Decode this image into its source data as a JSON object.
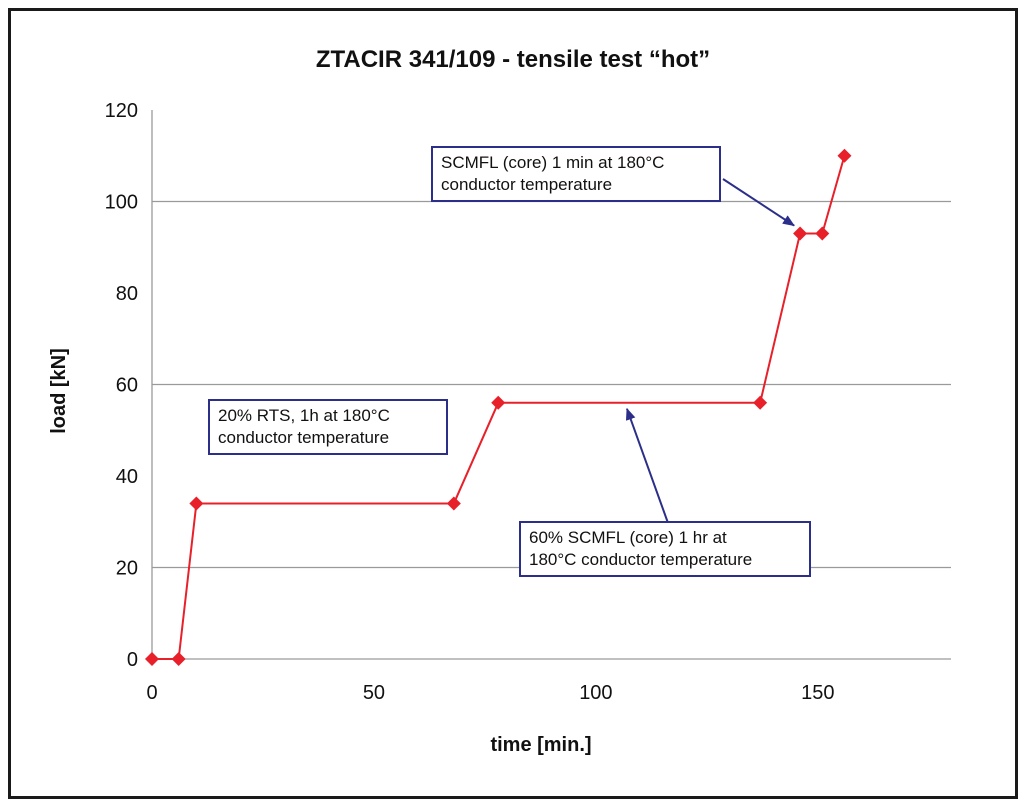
{
  "chart_data": {
    "type": "line",
    "title": "ZTACIR 341/109 - tensile test “hot”",
    "xlabel": "time [min.]",
    "ylabel": "load [kN]",
    "xlim": [
      0,
      180
    ],
    "ylim": [
      0,
      120
    ],
    "x_ticks": [
      0,
      50,
      100,
      150
    ],
    "y_ticks": [
      0,
      20,
      40,
      60,
      80,
      100,
      120
    ],
    "grid": "horizontal",
    "legend": "none",
    "series": [
      {
        "x": [
          0,
          6,
          10,
          68,
          78,
          137,
          146,
          151,
          156
        ],
        "y": [
          0,
          0,
          34,
          34,
          56,
          56,
          93,
          93,
          110
        ]
      }
    ],
    "annotations": [
      {
        "id": "ann-core-1min",
        "lines": [
          "SCMFL (core) 1 min at 180°C",
          "conductor temperature"
        ],
        "arrow_to": {
          "x": 146,
          "y": 93
        }
      },
      {
        "id": "ann-rts",
        "lines": [
          "20% RTS, 1h at 180°C",
          "conductor temperature"
        ]
      },
      {
        "id": "ann-core-1hr",
        "lines": [
          "60% SCMFL (core) 1 hr at",
          "180°C conductor temperature"
        ],
        "arrow_to": {
          "x": 107,
          "y": 56
        }
      }
    ]
  },
  "colors": {
    "line": "#e8202a",
    "marker": "#e8202a",
    "grid": "#9a9a9a",
    "axis": "#333333",
    "annotation_border": "#2b2f8a",
    "arrow": "#2b2f8a"
  }
}
